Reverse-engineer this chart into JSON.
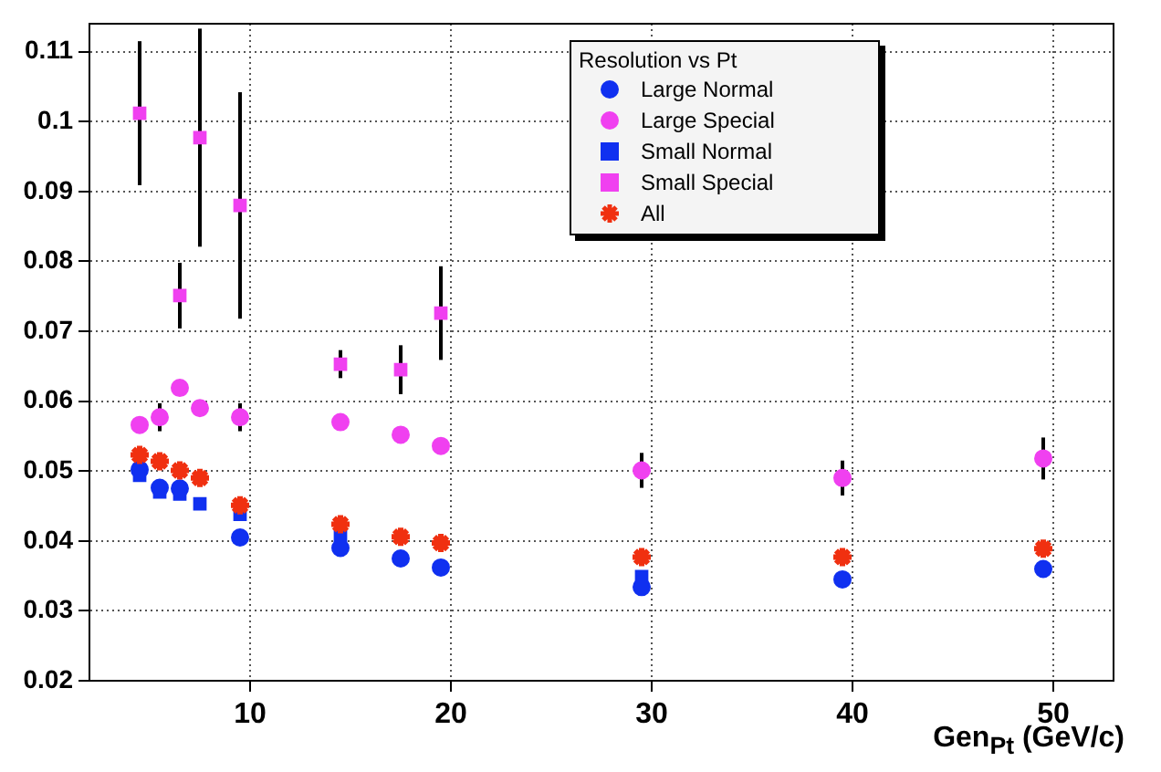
{
  "chart_data": {
    "type": "scatter",
    "xlabel": "Gen$_{Pt}$ (GeV/c)",
    "legend_title": "Resolution vs Pt",
    "legend": "top right",
    "grid": true,
    "xlim": [
      2,
      53
    ],
    "xticks": [
      10,
      20,
      30,
      40,
      50
    ],
    "ylim": [
      0.02,
      0.114
    ],
    "yticks": [
      0.02,
      0.03,
      0.04,
      0.05,
      0.06,
      0.07,
      0.08,
      0.09,
      0.1,
      0.11
    ],
    "x": [
      4.5,
      5.5,
      6.5,
      7.5,
      9.5,
      14.5,
      17.5,
      19.5,
      29.5,
      39.5,
      49.5
    ],
    "series": [
      {
        "name": "Large Normal",
        "color": "#1030f0",
        "marker": "circle",
        "values": [
          0.0502,
          0.0476,
          0.0475,
          null,
          0.0405,
          0.039,
          0.0375,
          0.0362,
          0.0334,
          0.0345,
          0.036
        ]
      },
      {
        "name": "Large Special",
        "color": "#f040f0",
        "marker": "circle",
        "values": [
          0.0566,
          0.0577,
          0.0619,
          0.059,
          0.0577,
          0.057,
          0.0552,
          0.0536,
          0.0501,
          0.049,
          0.0518
        ],
        "errors": [
          null,
          0.002,
          null,
          null,
          0.002,
          null,
          null,
          null,
          0.0025,
          0.0025,
          0.003
        ]
      },
      {
        "name": "Small Normal",
        "color": "#1030f0",
        "marker": "square",
        "values": [
          0.0494,
          0.047,
          0.0467,
          0.0453,
          0.0438,
          0.0408,
          null,
          null,
          0.0349,
          null,
          null
        ]
      },
      {
        "name": "Small Special",
        "color": "#f040f0",
        "marker": "square",
        "values": [
          0.1012,
          null,
          0.0751,
          0.0977,
          0.088,
          0.0653,
          0.0645,
          0.0726,
          null,
          null,
          null
        ],
        "errors": [
          0.0103,
          null,
          0.0047,
          0.0156,
          0.0162,
          0.002,
          0.0035,
          0.0067,
          null,
          null,
          null
        ]
      },
      {
        "name": "All",
        "color": "#f03010",
        "marker": "cross",
        "values": [
          0.0523,
          0.0514,
          0.0501,
          0.049,
          0.0451,
          0.0424,
          0.0406,
          0.0397,
          0.0377,
          0.0377,
          0.0389
        ]
      }
    ]
  }
}
